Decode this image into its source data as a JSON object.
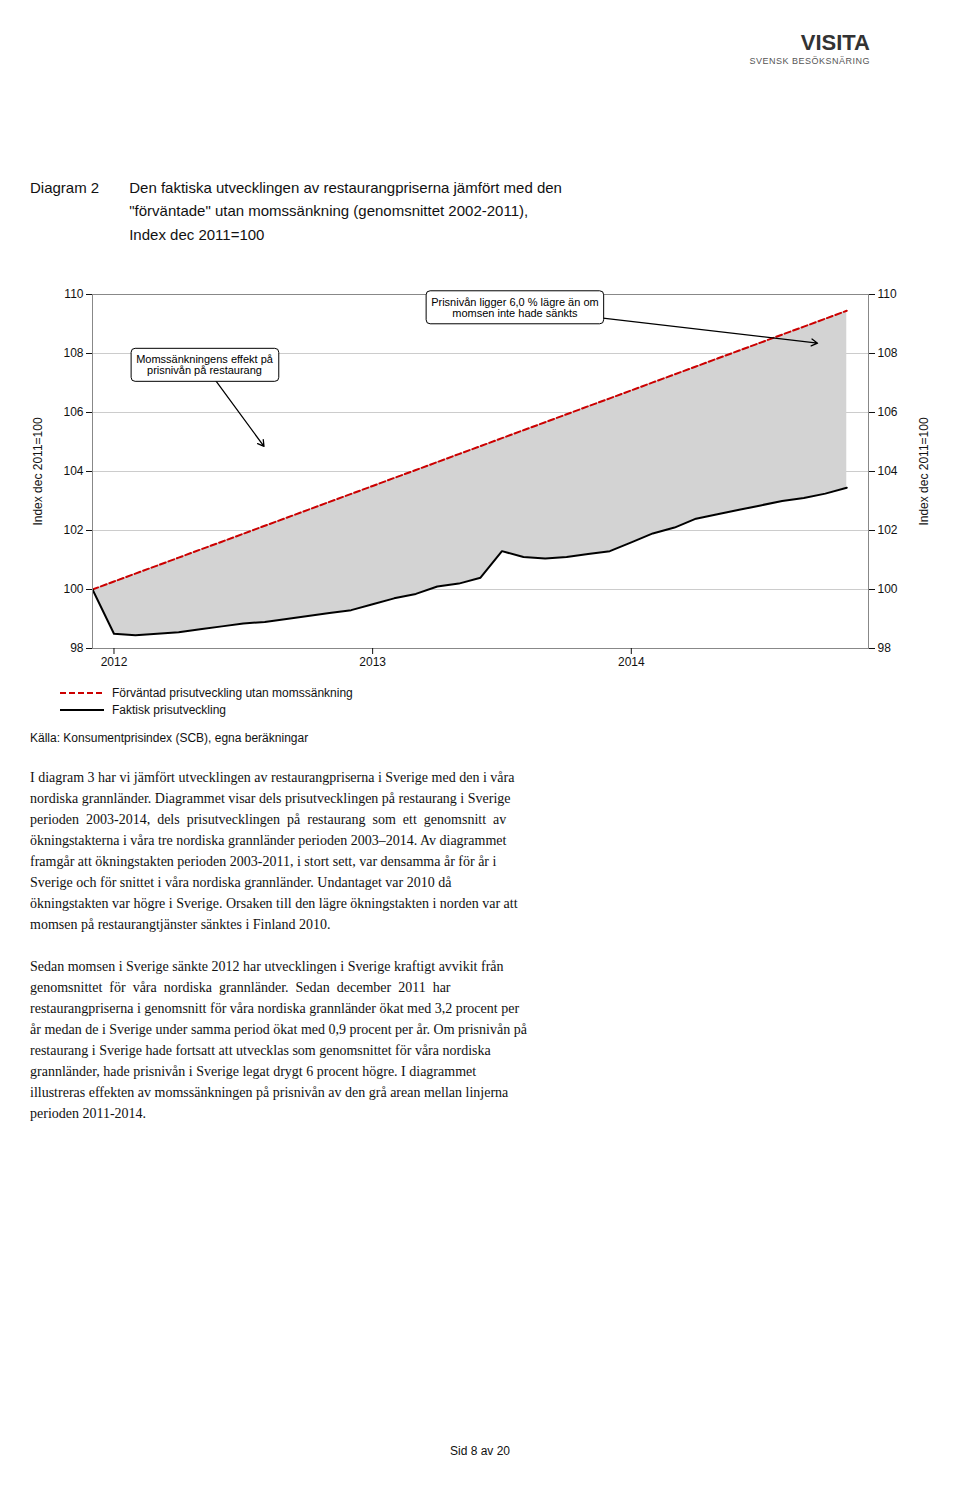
{
  "chart_data": {
    "type": "line",
    "title": "Diagram 2",
    "subtitle": "Den faktiska utvecklingen av restaurangpriserna jämfört med den\n\"förväntade\" utan momssänkning (genomsnittet 2002-2011),\nIndex dec 2011=100",
    "ylabel": "Index dec 2011=100",
    "source": "Källa: Konsumentprisindex (SCB), egna beräkningar",
    "x": [
      2011.917,
      2012.0,
      2012.083,
      2012.167,
      2012.25,
      2012.333,
      2012.417,
      2012.5,
      2012.583,
      2012.667,
      2012.75,
      2012.833,
      2012.917,
      2013.0,
      2013.083,
      2013.167,
      2013.25,
      2013.333,
      2013.417,
      2013.5,
      2013.583,
      2013.667,
      2013.75,
      2013.833,
      2013.917,
      2014.0,
      2014.083,
      2014.167,
      2014.25,
      2014.333,
      2014.417,
      2014.5,
      2014.583,
      2014.667,
      2014.75,
      2014.833
    ],
    "series": [
      {
        "name": "Förväntad prisutveckling utan momssänkning",
        "color": "#cc0000",
        "line_style": "dashed",
        "values": [
          100.0,
          100.27,
          100.54,
          100.81,
          101.08,
          101.35,
          101.62,
          101.89,
          102.16,
          102.43,
          102.7,
          102.97,
          103.24,
          103.51,
          103.78,
          104.05,
          104.32,
          104.59,
          104.86,
          105.13,
          105.4,
          105.67,
          105.94,
          106.21,
          106.48,
          106.75,
          107.02,
          107.29,
          107.56,
          107.83,
          108.1,
          108.37,
          108.64,
          108.91,
          109.18,
          109.45
        ]
      },
      {
        "name": "Faktisk prisutveckling",
        "color": "#000000",
        "line_style": "solid",
        "values": [
          100.0,
          98.5,
          98.45,
          98.5,
          98.55,
          98.65,
          98.75,
          98.85,
          98.9,
          99.0,
          99.1,
          99.2,
          99.3,
          99.5,
          99.7,
          99.85,
          100.1,
          100.2,
          100.4,
          101.3,
          101.1,
          101.05,
          101.1,
          101.2,
          101.3,
          101.6,
          101.9,
          102.1,
          102.4,
          102.55,
          102.7,
          102.85,
          103.0,
          103.1,
          103.25,
          103.45
        ]
      }
    ],
    "fill_color": "#d3d3d3",
    "xlim": [
      2011.917,
      2014.917
    ],
    "xticks": [
      2012,
      2013,
      2014
    ],
    "ylim": [
      98,
      110
    ],
    "yticks": [
      98,
      100,
      102,
      104,
      106,
      108,
      110
    ],
    "grid": true,
    "legend": "bottom",
    "annotations": [
      {
        "text": "Momssänkningens effekt på\nprisnivån på restaurang",
        "x": 2012.58,
        "y": 104.85,
        "text_x": 2012.35,
        "text_y": 107.6
      },
      {
        "text": "Prisnivån ligger 6,0 % lägre än om\nmomsen inte hade sänkts",
        "x": 2014.72,
        "y": 108.35,
        "text_x": 2013.55,
        "text_y": 109.55
      }
    ]
  },
  "page": {
    "logo": "VISITA",
    "logo_subtitle": "SVENSK BESÖKSNÄRING",
    "paragraphs": [
      [
        "I diagram 3 har vi jämfört utvecklingen av restaurangpriserna i Sverige med den i våra",
        "nordiska grannländer. Diagrammet visar dels prisutvecklingen på restaurang i Sverige",
        "perioden  2003-2014,  dels  prisutvecklingen  på  restaurang  som  ett  genomsnitt  av",
        "ökningstakterna i våra tre nordiska grannländer perioden 2003–2014. Av diagrammet",
        "framgår att ökningstakten perioden 2003-2011, i stort sett, var densamma år för år i",
        "Sverige och för snittet i våra nordiska grannländer. Undantaget var 2010 då",
        "ökningstakten var högre i Sverige. Orsaken till den lägre ökningstakten i norden var att",
        "momsen på restaurangtjänster sänktes i Finland 2010."
      ],
      [
        "Sedan momsen i Sverige sänkte 2012 har utvecklingen i Sverige kraftigt avvikit från",
        "genomsnittet  för  våra  nordiska  grannländer.  Sedan  december  2011  har",
        "restaurangpriserna i genomsnitt för våra nordiska grannländer ökat med 3,2 procent per",
        "år medan de i Sverige under samma period ökat med 0,9 procent per år. Om prisnivån på",
        "restaurang i Sverige hade fortsatt att utvecklas som genomsnittet för våra nordiska",
        "grannländer, hade prisnivån i Sverige legat drygt 6 procent högre. I diagrammet",
        "illustreras effekten av momssänkningen på prisnivån av den grå arean mellan linjerna",
        "perioden 2011-2014."
      ]
    ],
    "page_number": "Sid 8 av 20"
  }
}
